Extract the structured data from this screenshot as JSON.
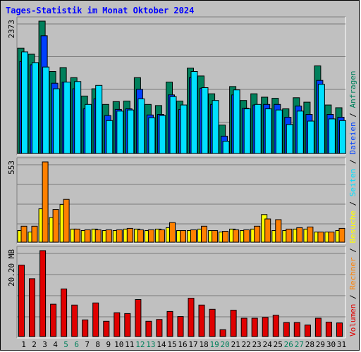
{
  "title": "Tages-Statistik im Monat Oktober 2024",
  "colors": {
    "background": "#c0c0c0",
    "title": "#0000ff",
    "anfragen": "#00805c",
    "dateien": "#0040ff",
    "seiten": "#00e0ff",
    "besuche": "#ffff00",
    "rechner": "#ff8000",
    "volumen": "#e00000",
    "weekend_label": "#00805c",
    "day_label": "#000000"
  },
  "weekend_days": [
    5,
    6,
    12,
    13,
    19,
    20,
    26,
    27
  ],
  "chart_data": [
    {
      "type": "bar",
      "name": "hits-panel",
      "ylabel_max": "2373",
      "ylim": [
        0,
        2373
      ],
      "categories": [
        "1",
        "2",
        "3",
        "4",
        "5",
        "6",
        "7",
        "8",
        "9",
        "10",
        "11",
        "12",
        "13",
        "14",
        "15",
        "16",
        "17",
        "18",
        "19",
        "20",
        "21",
        "22",
        "23",
        "24",
        "25",
        "26",
        "27",
        "28",
        "29",
        "30",
        "31"
      ],
      "series": [
        {
          "name": "Anfragen",
          "values": [
            1890,
            1780,
            2373,
            1470,
            1540,
            1360,
            1030,
            1160,
            880,
            930,
            940,
            1360,
            880,
            860,
            1280,
            940,
            1530,
            1390,
            1070,
            510,
            1200,
            950,
            1070,
            1010,
            990,
            800,
            1000,
            920,
            1570,
            870,
            820
          ]
        },
        {
          "name": "Dateien",
          "values": [
            1650,
            1590,
            2110,
            1260,
            1280,
            1160,
            800,
            980,
            680,
            790,
            800,
            1150,
            690,
            700,
            1050,
            790,
            1360,
            1170,
            880,
            310,
            1050,
            810,
            870,
            880,
            880,
            650,
            850,
            700,
            1310,
            700,
            650
          ]
        },
        {
          "name": "Seiten",
          "values": [
            1820,
            1630,
            1550,
            1160,
            1280,
            1290,
            880,
            1220,
            590,
            760,
            780,
            980,
            640,
            680,
            1020,
            870,
            1470,
            1180,
            950,
            220,
            1140,
            800,
            880,
            800,
            780,
            520,
            760,
            580,
            1240,
            620,
            590
          ]
        }
      ]
    },
    {
      "type": "bar",
      "name": "visits-panel",
      "ylabel_max": "553",
      "ylim": [
        0,
        553
      ],
      "categories": [
        "1",
        "2",
        "3",
        "4",
        "5",
        "6",
        "7",
        "8",
        "9",
        "10",
        "11",
        "12",
        "13",
        "14",
        "15",
        "16",
        "17",
        "18",
        "19",
        "20",
        "21",
        "22",
        "23",
        "24",
        "25",
        "26",
        "27",
        "28",
        "29",
        "30",
        "31"
      ],
      "series": [
        {
          "name": "Besuche",
          "values": [
            80,
            70,
            230,
            170,
            260,
            90,
            80,
            90,
            80,
            80,
            90,
            90,
            80,
            90,
            100,
            80,
            80,
            90,
            80,
            70,
            90,
            80,
            90,
            190,
            80,
            80,
            90,
            90,
            70,
            70,
            80
          ]
        },
        {
          "name": "Rechner",
          "values": [
            110,
            110,
            553,
            225,
            295,
            90,
            85,
            85,
            85,
            85,
            95,
            85,
            85,
            85,
            135,
            80,
            85,
            110,
            80,
            75,
            85,
            85,
            110,
            160,
            155,
            90,
            100,
            105,
            70,
            70,
            95
          ]
        }
      ]
    },
    {
      "type": "bar",
      "name": "volume-panel",
      "ylabel_max": "20.20 MB",
      "ylim": [
        0,
        20.2
      ],
      "categories": [
        "1",
        "2",
        "3",
        "4",
        "5",
        "6",
        "7",
        "8",
        "9",
        "10",
        "11",
        "12",
        "13",
        "14",
        "15",
        "16",
        "17",
        "18",
        "19",
        "20",
        "21",
        "22",
        "23",
        "24",
        "25",
        "26",
        "27",
        "28",
        "29",
        "30",
        "31"
      ],
      "series": [
        {
          "name": "Volumen",
          "values": [
            16.8,
            13.6,
            20.2,
            7.6,
            11.2,
            7.4,
            3.9,
            7.9,
            3.6,
            5.6,
            5.4,
            8.7,
            3.6,
            4.0,
            5.9,
            4.7,
            9.0,
            7.4,
            6.4,
            1.6,
            6.2,
            4.3,
            4.3,
            4.5,
            5.0,
            3.3,
            3.3,
            2.7,
            4.3,
            3.4,
            3.2
          ]
        }
      ]
    }
  ],
  "legend": [
    "Volumen",
    "/",
    "Rechner",
    "/",
    "Besuche",
    "/",
    "Seiten",
    "/",
    "Dateien",
    "/",
    "Anfragen"
  ]
}
